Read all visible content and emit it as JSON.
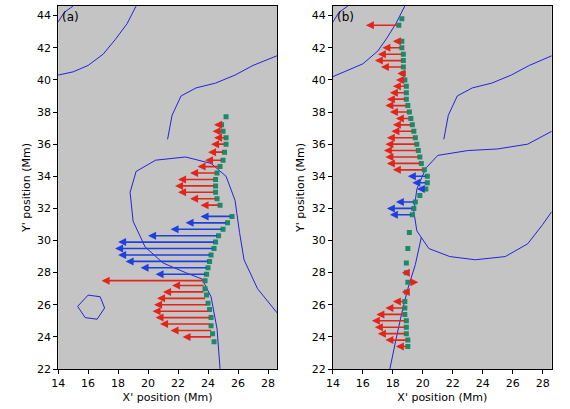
{
  "chart_data": [
    {
      "type": "vector",
      "title": "(a)",
      "x_label": "X' position (Mm)",
      "y_label": "Y' position (Mm)",
      "xlim": [
        14,
        28.6
      ],
      "ylim": [
        22,
        44.6
      ],
      "xticks": [
        14,
        16,
        18,
        20,
        22,
        24,
        26,
        28
      ],
      "yticks": [
        22,
        24,
        26,
        28,
        30,
        32,
        34,
        36,
        38,
        40,
        42,
        44
      ],
      "grid": false,
      "arrows": [
        {
          "color": "#e4241b",
          "y": [
            24.0,
            24.4,
            24.8,
            25.2,
            25.6,
            26.0,
            26.4,
            26.8,
            27.2,
            27.5,
            32.2,
            32.6,
            33.0,
            33.4,
            33.8,
            34.2,
            34.6,
            35.0,
            35.5,
            36.0,
            36.4,
            36.8,
            37.2
          ],
          "x": [
            24.3,
            24.3,
            24.2,
            24.2,
            24.1,
            24.0,
            23.9,
            23.8,
            23.8,
            23.8,
            24.8,
            24.6,
            24.5,
            24.5,
            24.5,
            24.6,
            24.8,
            25.0,
            25.1,
            25.2,
            25.2,
            25.0,
            24.9
          ],
          "x_end": [
            22.3,
            21.5,
            20.8,
            20.5,
            20.3,
            20.4,
            20.6,
            21.0,
            21.6,
            16.9,
            23.5,
            22.8,
            22.0,
            21.8,
            22.0,
            22.8,
            23.3,
            23.8,
            24.0,
            24.2,
            24.4,
            24.3,
            24.4
          ]
        },
        {
          "color": "#1f3fe0",
          "y": [
            27.9,
            28.3,
            28.7,
            29.1,
            29.5,
            29.9,
            30.3,
            30.7,
            31.1,
            31.5
          ],
          "x": [
            23.9,
            24.0,
            24.1,
            24.2,
            24.4,
            24.5,
            24.7,
            25.0,
            25.3,
            25.6
          ],
          "x_end": [
            20.5,
            19.5,
            18.5,
            18.0,
            17.8,
            18.0,
            20.0,
            21.5,
            22.5,
            23.5
          ]
        }
      ],
      "points": {
        "color": "#1b8a6a",
        "marker": "square",
        "x": [
          24.4,
          24.3,
          24.2,
          24.2,
          24.1,
          24.0,
          23.9,
          23.8,
          23.8,
          23.9,
          24.0,
          24.1,
          24.2,
          24.4,
          24.5,
          24.7,
          25.0,
          25.3,
          25.6,
          24.8,
          24.6,
          24.5,
          24.5,
          24.5,
          24.6,
          24.8,
          25.0,
          25.1,
          25.2,
          25.2,
          25.0,
          24.9,
          25.2
        ],
        "y": [
          23.7,
          24.2,
          24.7,
          25.2,
          25.7,
          26.1,
          26.6,
          27.0,
          27.5,
          27.9,
          28.3,
          28.7,
          29.1,
          29.5,
          29.9,
          30.3,
          30.7,
          31.1,
          31.5,
          32.2,
          32.6,
          33.0,
          33.4,
          33.8,
          34.2,
          34.6,
          35.0,
          35.5,
          36.0,
          36.4,
          36.8,
          37.2,
          37.7
        ]
      },
      "contours": {
        "color": "#2323d8",
        "line_style": "solid",
        "lines": [
          {
            "x": [
              14,
              15,
              16,
              17,
              17.8,
              18.6,
              19.2
            ],
            "y": [
              40.3,
              40.5,
              40.9,
              41.6,
              42.5,
              43.5,
              44.6
            ]
          },
          {
            "x": [
              21.3,
              21.6,
              22.2,
              23.2,
              24.5,
              25.8,
              27,
              28,
              28.6
            ],
            "y": [
              36.3,
              37.8,
              39.0,
              39.5,
              39.8,
              40.3,
              40.9,
              41.3,
              41.5
            ]
          },
          {
            "x": [
              28.6,
              27.3,
              26.4,
              26.1,
              25.8,
              25.2,
              24.2,
              22.5,
              20.5,
              19.2,
              18.8,
              19.0,
              19.8,
              21.0,
              22.5,
              23.6,
              24.2,
              24.6,
              24.8
            ],
            "y": [
              25.5,
              27.0,
              28.8,
              30.5,
              32.5,
              34.0,
              34.8,
              35.2,
              35.0,
              34.3,
              33.0,
              31.2,
              29.6,
              28.6,
              28.0,
              27.6,
              26.5,
              24.5,
              22.0
            ]
          },
          {
            "x": [
              15.3,
              16.0,
              16.8,
              17.1,
              16.6,
              15.8,
              15.3
            ],
            "y": [
              25.9,
              26.6,
              26.5,
              25.8,
              25.1,
              25.2,
              25.9
            ]
          },
          {
            "x": [
              14,
              14.4,
              15.0
            ],
            "y": [
              43.6,
              44.2,
              44.6
            ]
          }
        ]
      }
    },
    {
      "type": "vector",
      "title": "(b)",
      "x_label": "X' position (Mm)",
      "y_label": "Y' position (Mm)",
      "xlim": [
        14,
        28.6
      ],
      "ylim": [
        22,
        44.6
      ],
      "xticks": [
        14,
        16,
        18,
        20,
        22,
        24,
        26,
        28
      ],
      "yticks": [
        22,
        24,
        26,
        28,
        30,
        32,
        34,
        36,
        38,
        40,
        42,
        44
      ],
      "grid": false,
      "arrows": [
        {
          "color": "#e4241b",
          "y": [
            23.4,
            23.8,
            24.2,
            24.6,
            25.0,
            25.4,
            25.8,
            26.2,
            26.8,
            27.4,
            28.0,
            34.4,
            34.8,
            35.2,
            35.6,
            36.0,
            36.4,
            36.8,
            37.2,
            37.6,
            38.0,
            38.4,
            38.8,
            39.2,
            39.6,
            40.0,
            40.4,
            40.8,
            41.2,
            41.6,
            42.0,
            42.4,
            43.4
          ],
          "x": [
            19.0,
            19.0,
            18.9,
            18.9,
            18.9,
            18.8,
            18.8,
            18.8,
            18.9,
            19.0,
            18.9,
            20.1,
            19.9,
            19.8,
            19.7,
            19.6,
            19.5,
            19.4,
            19.3,
            19.2,
            19.1,
            19.0,
            18.9,
            18.9,
            18.9,
            18.8,
            18.7,
            18.7,
            18.7,
            18.7,
            18.6,
            18.6,
            18.4
          ],
          "x_end": [
            18.2,
            17.5,
            17.0,
            16.8,
            16.6,
            16.9,
            17.5,
            18.0,
            18.6,
            19.7,
            18.6,
            18.0,
            17.6,
            17.5,
            17.4,
            17.5,
            17.6,
            17.9,
            18.0,
            18.2,
            17.8,
            17.5,
            17.6,
            17.8,
            18.0,
            18.2,
            18.3,
            17.2,
            16.8,
            17.0,
            17.3,
            18.0,
            16.2
          ]
        },
        {
          "color": "#1f3fe0",
          "y": [
            31.6,
            32.0,
            32.4,
            33.2,
            33.6,
            34.0
          ],
          "x": [
            19.3,
            19.4,
            19.5,
            20.2,
            20.3,
            20.3
          ],
          "x_end": [
            17.8,
            17.6,
            18.2,
            19.6,
            19.3,
            19.0
          ]
        }
      ],
      "points": {
        "color": "#1b8a6a",
        "marker": "square",
        "x": [
          19.0,
          19.0,
          18.9,
          18.9,
          18.9,
          18.8,
          18.8,
          18.8,
          18.9,
          19.0,
          18.9,
          18.9,
          19.0,
          19.1,
          19.3,
          19.4,
          19.5,
          19.8,
          20.2,
          20.3,
          20.3,
          20.1,
          19.9,
          19.8,
          19.7,
          19.6,
          19.5,
          19.4,
          19.3,
          19.2,
          19.1,
          19.0,
          18.9,
          18.9,
          18.9,
          18.8,
          18.7,
          18.7,
          18.7,
          18.7,
          18.6,
          18.6,
          18.4,
          18.6
        ],
        "y": [
          23.4,
          23.8,
          24.2,
          24.6,
          25.0,
          25.4,
          25.8,
          26.2,
          26.8,
          27.4,
          28.0,
          28.6,
          29.5,
          30.5,
          31.6,
          32.0,
          32.4,
          32.8,
          33.2,
          33.6,
          34.0,
          34.4,
          34.8,
          35.2,
          35.6,
          36.0,
          36.4,
          36.8,
          37.2,
          37.6,
          38.0,
          38.4,
          38.8,
          39.2,
          39.6,
          40.0,
          40.4,
          40.8,
          41.2,
          41.6,
          42.0,
          42.4,
          43.4,
          43.8
        ]
      },
      "contours": {
        "color": "#2323d8",
        "line_style": "solid",
        "lines": [
          {
            "x": [
              14,
              15,
              16,
              17,
              17.6,
              18.2,
              18.8
            ],
            "y": [
              40.2,
              40.6,
              41.0,
              41.8,
              42.6,
              43.5,
              44.6
            ]
          },
          {
            "x": [
              21.4,
              21.7,
              22.3,
              23.3,
              24.6,
              25.9,
              27.1,
              28.1,
              28.6
            ],
            "y": [
              36.3,
              37.8,
              39.0,
              39.5,
              39.8,
              40.3,
              40.9,
              41.3,
              41.5
            ]
          },
          {
            "x": [
              28.6,
              27.0,
              25.0,
              23.0,
              21.0,
              20.2,
              19.6,
              19.4,
              19.6,
              20.4,
              21.8,
              23.5,
              25.5,
              27.0,
              28.0,
              28.6
            ],
            "y": [
              36.8,
              36.0,
              35.7,
              35.6,
              35.3,
              34.5,
              33.2,
              31.8,
              30.6,
              29.5,
              29.0,
              28.8,
              29.0,
              29.8,
              31.0,
              31.8
            ]
          },
          {
            "x": [
              19.9,
              19.5,
              19.0,
              18.6,
              18.2,
              17.8
            ],
            "y": [
              30.2,
              28.5,
              27.0,
              25.5,
              23.8,
              22.0
            ]
          },
          {
            "x": [
              14,
              14.4,
              15.0
            ],
            "y": [
              43.6,
              44.2,
              44.6
            ]
          }
        ]
      }
    }
  ]
}
